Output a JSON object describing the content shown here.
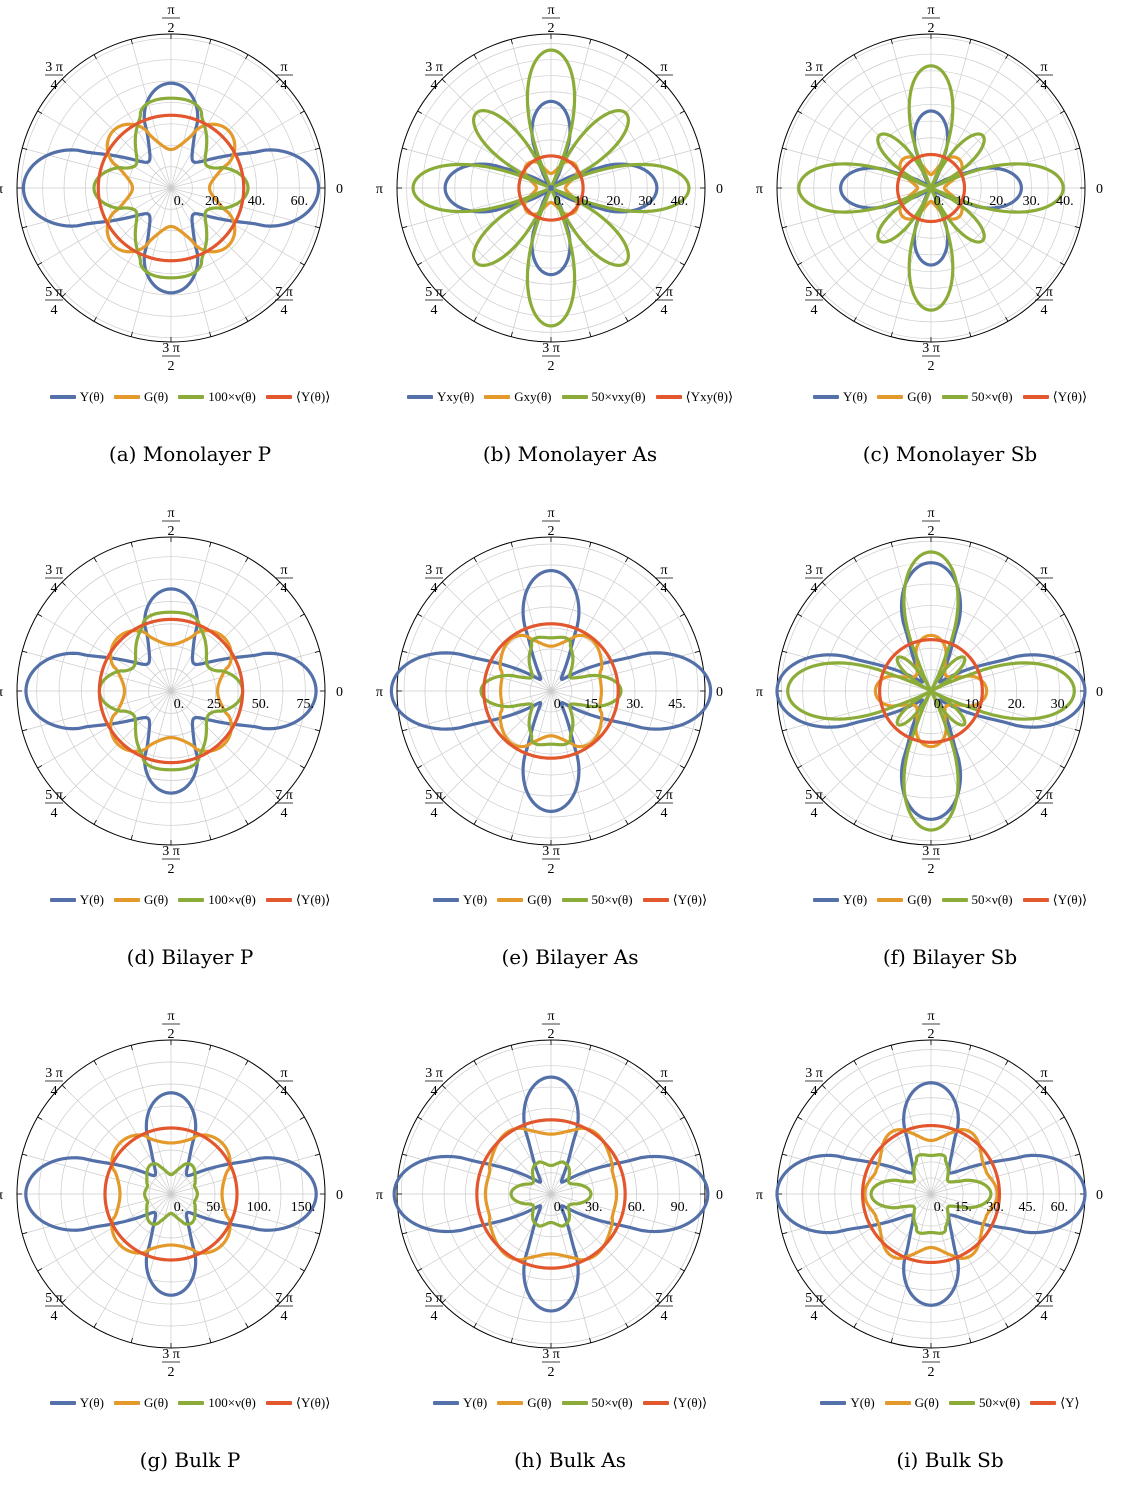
{
  "colors": {
    "blue": "#5470a8",
    "orange": "#e39a2a",
    "green": "#8cac39",
    "red": "#e2572e",
    "grid": "#cccccc"
  },
  "angle_labels": {
    "zero": "0",
    "quarter": [
      "π",
      "4"
    ],
    "half": [
      "π",
      "2"
    ],
    "three_quarter": [
      "3 π",
      "4"
    ],
    "pi": "π",
    "five_quarter": [
      "5 π",
      "4"
    ],
    "three_half": [
      "3 π",
      "2"
    ],
    "seven_quarter": [
      "7 π",
      "4"
    ]
  },
  "chart_data": [
    {
      "type": "polar",
      "caption": "(a) Monolayer P",
      "rmax": 72,
      "ticks": [
        "0.",
        "20.",
        "40.",
        "60."
      ],
      "tick_values": [
        0,
        20,
        40,
        60
      ],
      "legend": [
        "Y(θ)",
        "G(θ)",
        "100×ν(θ)",
        "⟨Y(θ)⟩"
      ],
      "series": [
        {
          "name": "Y(θ)",
          "color": "blue",
          "a": 38,
          "b": 10,
          "c": 21,
          "d": 0
        },
        {
          "name": "G(θ)",
          "color": "orange",
          "a": 28,
          "b": 0,
          "c": -10,
          "d": 0
        },
        {
          "name": "100×ν(θ)",
          "color": "green",
          "a": 31,
          "b": -6,
          "c": 8,
          "d": 3
        },
        {
          "name": "⟨Y(θ)⟩",
          "color": "red",
          "a": 34,
          "b": 0,
          "c": 0,
          "d": 0
        }
      ]
    },
    {
      "type": "polar",
      "caption": "(b) Monolayer As",
      "rmax": 48,
      "ticks": [
        "0.",
        "10.",
        "20.",
        "30.",
        "40."
      ],
      "tick_values": [
        0,
        10,
        20,
        30,
        40
      ],
      "legend": [
        "Yxy(θ)",
        "Gxy(θ)",
        "50×νxy(θ)",
        "⟨Yxy(θ)⟩"
      ],
      "series": [
        {
          "name": "Yxy(θ)",
          "color": "blue",
          "a": 15,
          "b": 3,
          "c": 15,
          "d": 0
        },
        {
          "name": "Gxy(θ)",
          "color": "orange",
          "a": 7.5,
          "b": 0,
          "c": -3,
          "d": 0
        },
        {
          "name": "50×νxy(θ)",
          "color": "green",
          "a": 5,
          "b": 0,
          "c": 38,
          "d": 0
        },
        {
          "name": "⟨Yxy(θ)⟩",
          "color": "red",
          "a": 10,
          "b": 0,
          "c": 0,
          "d": 0
        }
      ]
    },
    {
      "type": "polar",
      "caption": "(c) Monolayer Sb",
      "rmax": 46,
      "ticks": [
        "0.",
        "10.",
        "20.",
        "30.",
        "40."
      ],
      "tick_values": [
        0,
        10,
        20,
        30,
        40
      ],
      "legend": [
        "Y(θ)",
        "G(θ)",
        "50×ν(θ)",
        "⟨Y(θ)⟩"
      ],
      "series": [
        {
          "name": "Y(θ)",
          "color": "blue",
          "a": 12,
          "b": 2,
          "c": 13,
          "d": 0
        },
        {
          "name": "G(θ)",
          "color": "orange",
          "a": 8,
          "b": 0,
          "c": -4,
          "d": 0
        },
        {
          "name": "50×ν(θ)",
          "color": "green",
          "a": 8,
          "b": 1.5,
          "c": 30,
          "d": 0
        },
        {
          "name": "⟨Y(θ)⟩",
          "color": "red",
          "a": 10,
          "b": 0,
          "c": 0,
          "d": 0
        }
      ]
    },
    {
      "type": "polar",
      "caption": "(d) Bilayer P",
      "rmax": 86,
      "ticks": [
        "0.",
        "25.",
        "50.",
        "75."
      ],
      "tick_values": [
        0,
        25,
        50,
        75
      ],
      "legend": [
        "Y(θ)",
        "G(θ)",
        "100×ν(θ)",
        "⟨Y(θ)⟩"
      ],
      "series": [
        {
          "name": "Y(θ)",
          "color": "blue",
          "a": 45,
          "b": 12,
          "c": 24,
          "d": 0
        },
        {
          "name": "G(θ)",
          "color": "orange",
          "a": 34,
          "b": 0,
          "c": -8,
          "d": 0
        },
        {
          "name": "100×ν(θ)",
          "color": "green",
          "a": 35,
          "b": -5,
          "c": 7,
          "d": 3
        },
        {
          "name": "⟨Y(θ)⟩",
          "color": "red",
          "a": 40,
          "b": 0,
          "c": 0,
          "d": 0
        }
      ]
    },
    {
      "type": "polar",
      "caption": "(e) Bilayer As",
      "rmax": 55,
      "ticks": [
        "0.",
        "15.",
        "30.",
        "45."
      ],
      "tick_values": [
        0,
        15,
        30,
        45
      ],
      "legend": [
        "Y(θ)",
        "G(θ)",
        "50×ν(θ)",
        "⟨Y(θ)⟩"
      ],
      "series": [
        {
          "name": "Y(θ)",
          "color": "blue",
          "a": 28,
          "b": 7,
          "c": 22,
          "d": 0
        },
        {
          "name": "G(θ)",
          "color": "orange",
          "a": 20,
          "b": 0,
          "c": -3,
          "d": 1
        },
        {
          "name": "50×ν(θ)",
          "color": "green",
          "a": 16,
          "b": 0,
          "c": 6,
          "d": 3
        },
        {
          "name": "⟨Y(θ)⟩",
          "color": "red",
          "a": 24,
          "b": 0,
          "c": 0,
          "d": 0
        }
      ]
    },
    {
      "type": "polar",
      "caption": "(f) Bilayer Sb",
      "rmax": 36,
      "ticks": [
        "0.",
        "10.",
        "20.",
        "30."
      ],
      "tick_values": [
        0,
        10,
        20,
        30
      ],
      "legend": [
        "Y(θ)",
        "G(θ)",
        "50×ν(θ)",
        "⟨Y(θ)⟩"
      ],
      "series": [
        {
          "name": "Y(θ)",
          "color": "blue",
          "a": 18,
          "b": 3,
          "c": 15,
          "d": 0
        },
        {
          "name": "G(θ)",
          "color": "orange",
          "a": 9,
          "b": 0,
          "c": 4,
          "d": 0
        },
        {
          "name": "50×ν(θ)",
          "color": "green",
          "a": 11,
          "b": 0.5,
          "c": 22,
          "d": 0
        },
        {
          "name": "⟨Y(θ)⟩",
          "color": "red",
          "a": 12,
          "b": 0,
          "c": 0,
          "d": 0
        }
      ]
    },
    {
      "type": "polar",
      "caption": "(g) Bulk P",
      "rmax": 175,
      "ticks": [
        "0.",
        "50.",
        "100.",
        "150."
      ],
      "tick_values": [
        0,
        50,
        100,
        150
      ],
      "legend": [
        "Y(θ)",
        "G(θ)",
        "100×ν(θ)",
        "⟨Y(θ)⟩"
      ],
      "series": [
        {
          "name": "Y(θ)",
          "color": "blue",
          "a": 85,
          "b": 25,
          "c": 55,
          "d": 0
        },
        {
          "name": "G(θ)",
          "color": "orange",
          "a": 70,
          "b": 0,
          "c": -12,
          "d": 0
        },
        {
          "name": "100×ν(θ)",
          "color": "green",
          "a": 32,
          "b": 0,
          "c": -6,
          "d": 4
        },
        {
          "name": "⟨Y(θ)⟩",
          "color": "red",
          "a": 75,
          "b": 0,
          "c": 0,
          "d": 0
        }
      ]
    },
    {
      "type": "polar",
      "caption": "(h) Bulk As",
      "rmax": 108,
      "ticks": [
        "0.",
        "30.",
        "60.",
        "90."
      ],
      "tick_values": [
        0,
        30,
        60,
        90
      ],
      "legend": [
        "Y(θ)",
        "G(θ)",
        "50×ν(θ)",
        "⟨Y(θ)⟩"
      ],
      "series": [
        {
          "name": "Y(θ)",
          "color": "blue",
          "a": 54,
          "b": 14,
          "c": 42,
          "d": 0
        },
        {
          "name": "G(θ)",
          "color": "orange",
          "a": 48,
          "b": 0,
          "c": -4,
          "d": 2
        },
        {
          "name": "50×ν(θ)",
          "color": "green",
          "a": 21,
          "b": 0,
          "c": 3,
          "d": 4
        },
        {
          "name": "⟨Y(θ)⟩",
          "color": "red",
          "a": 52,
          "b": 0,
          "c": 0,
          "d": 0
        }
      ]
    },
    {
      "type": "polar",
      "caption": "(i) Bulk Sb",
      "rmax": 72,
      "ticks": [
        "0.",
        "15.",
        "30.",
        "45.",
        "60."
      ],
      "tick_values": [
        0,
        15,
        30,
        45,
        60
      ],
      "legend": [
        "Y(θ)",
        "G(θ)",
        "50×ν(θ)",
        "⟨Y⟩"
      ],
      "series": [
        {
          "name": "Y(θ)",
          "color": "blue",
          "a": 38,
          "b": 10,
          "c": 24,
          "d": 0
        },
        {
          "name": "G(θ)",
          "color": "orange",
          "a": 30,
          "b": 0,
          "c": -2,
          "d": 3
        },
        {
          "name": "50×ν(θ)",
          "color": "green",
          "a": 17,
          "b": 2,
          "c": 6,
          "d": 3
        },
        {
          "name": "⟨Y⟩",
          "color": "red",
          "a": 32,
          "b": 0,
          "c": 0,
          "d": 0
        }
      ]
    }
  ]
}
